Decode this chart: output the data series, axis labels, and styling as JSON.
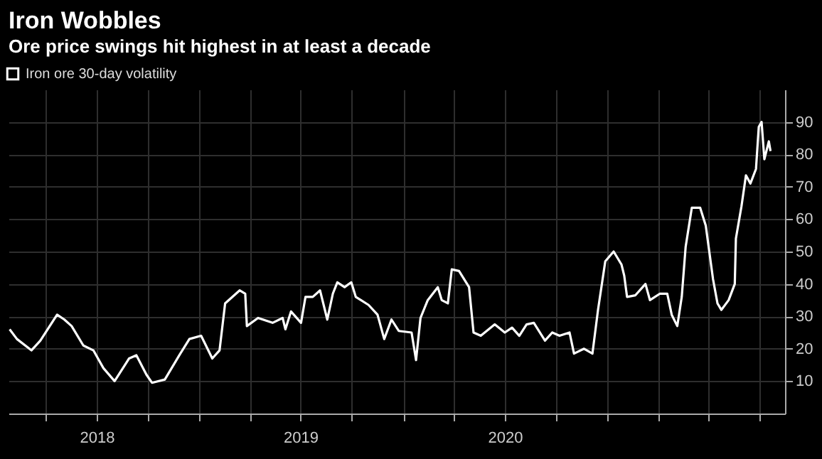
{
  "chart_data": {
    "type": "line",
    "title": "Iron Wobbles",
    "subtitle": "Ore price swings hit highest in at least a decade",
    "x": [
      "2018-01-26",
      "2018-02-08",
      "2018-03-06",
      "2018-03-22",
      "2018-04-21",
      "2018-05-04",
      "2018-05-17",
      "2018-06-07",
      "2018-06-25",
      "2018-07-13",
      "2018-08-02",
      "2018-08-28",
      "2018-09-10",
      "2018-09-28",
      "2018-10-08",
      "2018-10-31",
      "2018-11-26",
      "2018-12-14",
      "2019-01-04",
      "2019-01-24",
      "2019-02-06",
      "2019-02-16",
      "2019-03-14",
      "2019-03-24",
      "2019-03-27",
      "2019-04-16",
      "2019-05-12",
      "2019-05-30",
      "2019-06-04",
      "2019-06-14",
      "2019-07-02",
      "2019-07-10",
      "2019-07-23",
      "2019-08-05",
      "2019-08-18",
      "2019-08-28",
      "2019-09-05",
      "2019-09-18",
      "2019-09-30",
      "2019-10-08",
      "2019-10-31",
      "2019-11-16",
      "2019-11-28",
      "2019-12-11",
      "2019-12-24",
      "2020-01-16",
      "2020-01-24",
      "2020-02-01",
      "2020-02-14",
      "2020-03-03",
      "2020-03-10",
      "2020-03-21",
      "2020-03-28",
      "2020-04-10",
      "2020-04-28",
      "2020-05-06",
      "2020-05-19",
      "2020-06-13",
      "2020-07-01",
      "2020-07-14",
      "2020-07-27",
      "2020-08-09",
      "2020-08-22",
      "2020-09-11",
      "2020-09-24",
      "2020-10-07",
      "2020-10-25",
      "2020-11-02",
      "2020-11-20",
      "2020-12-05",
      "2020-12-15",
      "2020-12-28",
      "2021-01-12",
      "2021-01-26",
      "2021-01-31",
      "2021-02-05",
      "2021-02-20",
      "2021-03-10",
      "2021-03-18",
      "2021-04-05",
      "2021-04-18",
      "2021-04-26",
      "2021-05-06",
      "2021-05-14",
      "2021-05-21",
      "2021-06-01",
      "2021-06-16",
      "2021-06-26",
      "2021-07-09",
      "2021-07-17",
      "2021-07-24",
      "2021-08-06",
      "2021-08-17",
      "2021-08-19",
      "2021-08-29",
      "2021-09-06",
      "2021-09-14",
      "2021-09-24",
      "2021-09-29",
      "2021-10-04",
      "2021-10-09",
      "2021-10-17",
      "2021-10-20"
    ],
    "series": [
      {
        "name": "Iron ore 30-day volatility",
        "color": "#ffffff",
        "values": [
          26,
          23,
          19.5,
          22.5,
          30.5,
          29,
          27,
          21,
          19.5,
          14,
          10,
          17,
          18,
          12,
          9.5,
          10.5,
          18,
          23,
          24,
          17,
          19.5,
          34,
          38,
          37,
          27,
          29.5,
          28,
          29.5,
          26,
          31.5,
          28,
          36,
          36,
          38,
          29,
          37,
          40.5,
          39,
          40.5,
          36,
          33.5,
          30.5,
          23,
          29,
          25.5,
          25,
          16.5,
          29.5,
          35,
          39,
          35,
          34,
          44.5,
          44,
          39,
          25,
          24,
          27.5,
          25,
          26.5,
          24,
          27.5,
          28,
          22.5,
          25,
          24,
          25,
          18.5,
          20,
          18.5,
          32,
          47,
          50,
          46,
          42.5,
          36,
          36.5,
          40,
          35,
          37,
          37,
          30.5,
          27,
          36,
          51.5,
          63.5,
          63.5,
          58,
          41.5,
          34,
          32,
          35,
          40,
          54,
          64,
          73.5,
          71,
          75.5,
          88.5,
          90,
          78.5,
          84,
          81
        ]
      }
    ],
    "xlim": [
      "2018-01-24",
      "2021-11-15"
    ],
    "xticks": [
      {
        "value": "2018-04-01",
        "label": null
      },
      {
        "value": "2018-07-01",
        "label": "2018"
      },
      {
        "value": "2018-10-01",
        "label": null
      },
      {
        "value": "2019-01-01",
        "label": null
      },
      {
        "value": "2019-04-01",
        "label": null
      },
      {
        "value": "2019-07-01",
        "label": "2019"
      },
      {
        "value": "2019-10-01",
        "label": null
      },
      {
        "value": "2020-01-01",
        "label": null
      },
      {
        "value": "2020-04-01",
        "label": null
      },
      {
        "value": "2020-07-01",
        "label": "2020"
      },
      {
        "value": "2020-10-01",
        "label": null
      },
      {
        "value": "2021-01-01",
        "label": null
      },
      {
        "value": "2021-04-01",
        "label": null
      },
      {
        "value": "2021-07-01",
        "label": null
      },
      {
        "value": "2021-10-01",
        "label": null
      }
    ],
    "ylim": [
      0,
      100
    ],
    "yticks": [
      10,
      20,
      30,
      40,
      50,
      60,
      70,
      80,
      90
    ],
    "grid": true,
    "legend": "top left"
  }
}
